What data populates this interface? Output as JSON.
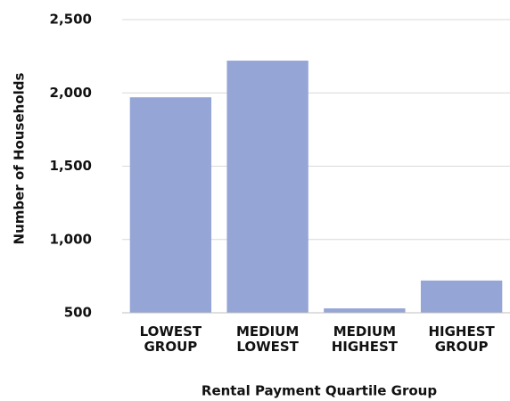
{
  "chart_data": {
    "type": "bar",
    "categories": [
      "LOWEST GROUP",
      "MEDIUM LOWEST",
      "MEDIUM HIGHEST",
      "HIGHEST GROUP"
    ],
    "values": [
      1970,
      2220,
      530,
      720
    ],
    "color": "#95a5d6",
    "ylim": [
      500,
      2500
    ],
    "yticks": [
      {
        "value": 500,
        "label": "500"
      },
      {
        "value": 1000,
        "label": "1,000"
      },
      {
        "value": 1500,
        "label": "1,500"
      },
      {
        "value": 2000,
        "label": "2,000"
      },
      {
        "value": 2500,
        "label": "2,500"
      }
    ],
    "grid": true,
    "xlabel": "Rental Payment Quartile Group",
    "ylabel": "Number of Households"
  }
}
